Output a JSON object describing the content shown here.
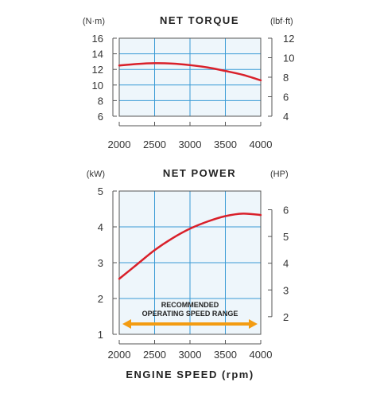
{
  "xlabel": "ENGINE SPEED (rpm)",
  "chart_data": [
    {
      "type": "line",
      "title": "NET TORQUE",
      "left_unit": "(N·m)",
      "right_unit": "(lbf·ft)",
      "xlim": [
        2000,
        4000
      ],
      "x_ticks": [
        2000,
        2500,
        3000,
        3500,
        4000
      ],
      "ylim": [
        6,
        16
      ],
      "y_ticks": [
        6,
        8,
        10,
        12,
        14,
        16
      ],
      "y2lim": [
        4,
        12
      ],
      "y2_ticks": [
        4,
        6,
        8,
        10,
        12
      ],
      "series": [
        {
          "x": [
            2000,
            2250,
            2500,
            2750,
            3000,
            3250,
            3500,
            3750,
            4000
          ],
          "y": [
            12.5,
            12.7,
            12.8,
            12.75,
            12.55,
            12.25,
            11.8,
            11.3,
            10.6
          ],
          "color": "#d9202a"
        }
      ],
      "grid": true
    },
    {
      "type": "line",
      "title": "NET POWER",
      "left_unit": "(kW)",
      "right_unit": "(HP)",
      "xlim": [
        2000,
        4000
      ],
      "x_ticks": [
        2000,
        2500,
        3000,
        3500,
        4000
      ],
      "ylim": [
        1,
        5
      ],
      "y_ticks": [
        1,
        2,
        3,
        4,
        5
      ],
      "y2lim": [
        1.34,
        6.7
      ],
      "y2_ticks": [
        2,
        3,
        4,
        5,
        6
      ],
      "series": [
        {
          "x": [
            2000,
            2250,
            2500,
            2750,
            3000,
            3250,
            3500,
            3750,
            4000
          ],
          "y": [
            2.55,
            2.95,
            3.35,
            3.68,
            3.95,
            4.15,
            4.3,
            4.37,
            4.33
          ],
          "color": "#d9202a"
        }
      ],
      "grid": true,
      "annotation": {
        "text_line1": "RECOMMENDED",
        "text_line2": "OPERATING SPEED RANGE",
        "x_range": [
          2000,
          4000
        ],
        "color": "#f39c12"
      }
    }
  ]
}
